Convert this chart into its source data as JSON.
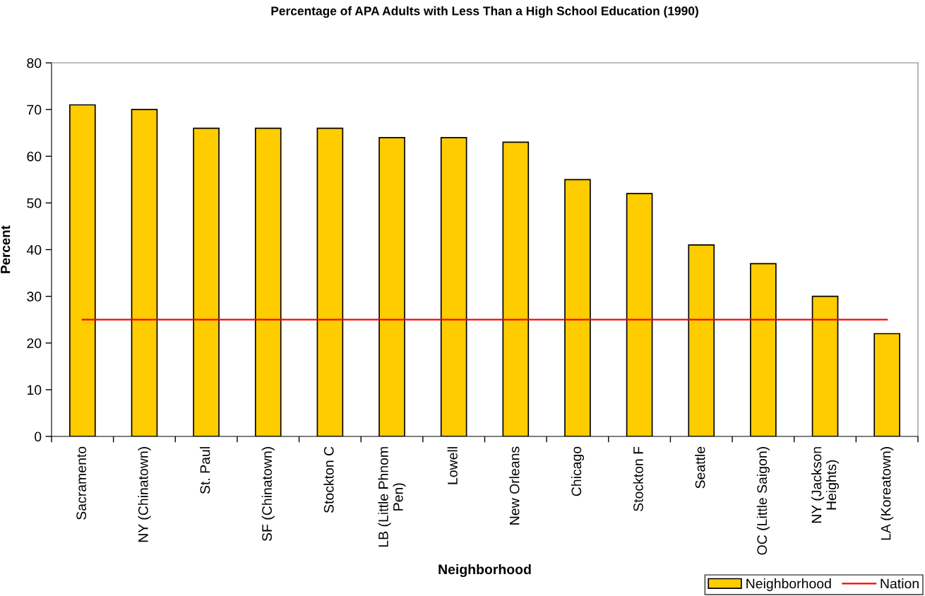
{
  "chart_data": {
    "type": "bar",
    "title": "Percentage of APA Adults with Less Than a High School Education (1990)",
    "xlabel": "Neighborhood",
    "ylabel": "Percent",
    "categories": [
      "Sacramento",
      "NY (Chinatown)",
      "St. Paul",
      "SF (Chinatown)",
      "Stockton C",
      "LB (Little Phnom Pen)",
      "Lowell",
      "New Orleans",
      "Chicago",
      "Stockton F",
      "Seattle",
      "OC (Little Saigon)",
      "NY (Jackson Heights)",
      "LA (Koreatown)"
    ],
    "series": [
      {
        "name": "Neighborhood",
        "color": "#ffcc00",
        "values": [
          71,
          70,
          66,
          66,
          66,
          64,
          64,
          63,
          55,
          52,
          41,
          37,
          30,
          22
        ]
      },
      {
        "name": "Nation",
        "type": "line",
        "color": "#ff0000",
        "values": [
          25,
          25,
          25,
          25,
          25,
          25,
          25,
          25,
          25,
          25,
          25,
          25,
          25,
          25
        ]
      }
    ],
    "ylim": [
      0,
      80
    ],
    "yticks": [
      0,
      10,
      20,
      30,
      40,
      50,
      60,
      70,
      80
    ],
    "legend": "bottom right",
    "marker": "none",
    "line_style": "solid"
  }
}
